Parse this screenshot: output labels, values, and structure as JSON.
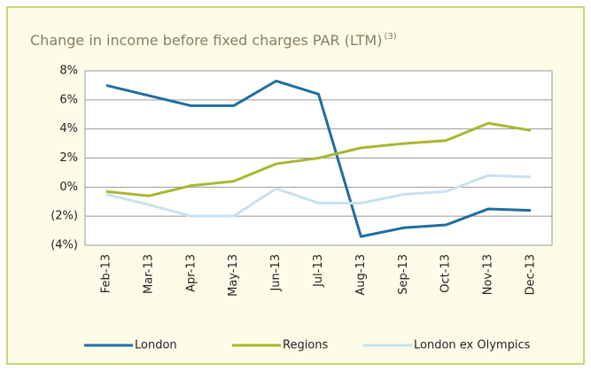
{
  "chart_data": {
    "type": "line",
    "title": "Change in income before fixed charges PAR (LTM)",
    "title_note": "(3)",
    "categories": [
      "Feb-13",
      "Mar-13",
      "Apr-13",
      "May-13",
      "Jun-13",
      "Jul-13",
      "Aug-13",
      "Sep-13",
      "Oct-13",
      "Nov-13",
      "Dec-13"
    ],
    "series": [
      {
        "name": "London",
        "color": "#1f6e9e",
        "values": [
          7.0,
          6.3,
          5.6,
          5.6,
          7.3,
          6.4,
          -3.4,
          -2.8,
          -2.6,
          -1.5,
          -1.6
        ]
      },
      {
        "name": "Regions",
        "color": "#a9b730",
        "values": [
          -0.3,
          -0.6,
          0.1,
          0.4,
          1.6,
          2.0,
          2.7,
          3.0,
          3.2,
          4.4,
          3.9
        ]
      },
      {
        "name": "London ex Olympics",
        "color": "#c9e1ee",
        "values": [
          -0.5,
          -1.2,
          -2.0,
          -2.0,
          -0.1,
          -1.1,
          -1.1,
          -0.5,
          -0.3,
          0.8,
          0.7
        ]
      }
    ],
    "ylim": [
      -4,
      8
    ],
    "yticks": [
      {
        "value": 8,
        "label": "8%"
      },
      {
        "value": 6,
        "label": "6%"
      },
      {
        "value": 4,
        "label": "4%"
      },
      {
        "value": 2,
        "label": "2%"
      },
      {
        "value": 0,
        "label": "0%"
      },
      {
        "value": -2,
        "label": "(2%)"
      },
      {
        "value": -4,
        "label": "(4%)"
      }
    ],
    "grid": true,
    "legend": "bottom"
  }
}
